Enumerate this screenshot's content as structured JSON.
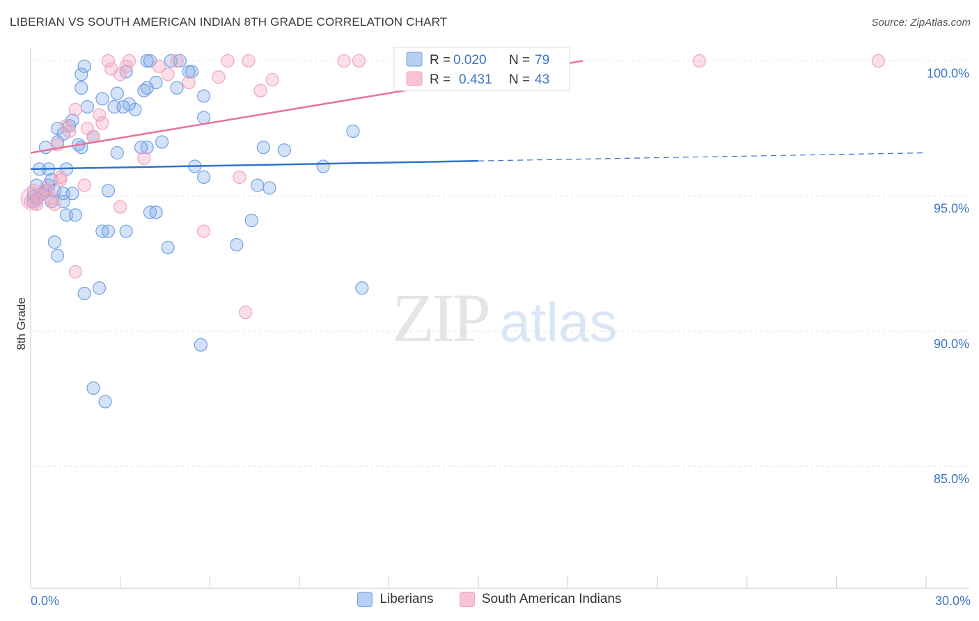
{
  "header": {
    "title": "LIBERIAN VS SOUTH AMERICAN INDIAN 8TH GRADE CORRELATION CHART",
    "source": "Source: ZipAtlas.com"
  },
  "watermark": {
    "zip": "ZIP",
    "atlas": "atlas"
  },
  "legend": {
    "r_label": "R =",
    "n_label": "N =",
    "liberian": {
      "r": "0.020",
      "n": "79"
    },
    "sai": {
      "r": "0.431",
      "n": "43"
    }
  },
  "chart_data": {
    "type": "scatter",
    "title": "LIBERIAN VS SOUTH AMERICAN INDIAN 8TH GRADE CORRELATION CHART",
    "xlabel": "",
    "ylabel": "8th Grade",
    "xlim": [
      0,
      30
    ],
    "ylim": [
      80.5,
      100.5
    ],
    "x_tick_labels": [
      "0.0%",
      "30.0%"
    ],
    "y_ticks": [
      85,
      90,
      95,
      100
    ],
    "y_tick_labels": [
      "85.0%",
      "90.0%",
      "95.0%",
      "100.0%"
    ],
    "colors": {
      "liberian": "#6fa0e4",
      "liberian_line": "#2e73c9",
      "sai": "#f0a3bd",
      "sai_line": "#e8709a",
      "tick": "#3b74c4"
    },
    "series": [
      {
        "name": "Liberians",
        "r": 0.02,
        "n": 79,
        "trend": {
          "x": [
            0,
            15
          ],
          "y": [
            96.0,
            96.3
          ],
          "dashed_x": [
            15,
            30
          ],
          "dashed_y": [
            96.3,
            96.6
          ]
        },
        "points": [
          [
            0.2,
            95.4
          ],
          [
            0.3,
            96.0
          ],
          [
            0.5,
            96.8
          ],
          [
            0.5,
            95.2
          ],
          [
            0.6,
            95.4
          ],
          [
            0.6,
            96.0
          ],
          [
            0.4,
            95.1
          ],
          [
            0.2,
            94.9
          ],
          [
            0.9,
            97.0
          ],
          [
            0.9,
            97.5
          ],
          [
            0.7,
            95.6
          ],
          [
            0.8,
            95.2
          ],
          [
            0.7,
            94.8
          ],
          [
            0.8,
            93.3
          ],
          [
            0.9,
            92.8
          ],
          [
            1.1,
            97.3
          ],
          [
            1.2,
            96.0
          ],
          [
            1.1,
            95.1
          ],
          [
            1.1,
            94.8
          ],
          [
            1.2,
            94.3
          ],
          [
            1.3,
            97.6
          ],
          [
            1.4,
            97.8
          ],
          [
            1.4,
            95.1
          ],
          [
            1.5,
            94.3
          ],
          [
            1.7,
            99.5
          ],
          [
            1.7,
            99.0
          ],
          [
            1.8,
            99.8
          ],
          [
            1.7,
            96.8
          ],
          [
            1.6,
            96.9
          ],
          [
            1.9,
            98.3
          ],
          [
            2.1,
            97.2
          ],
          [
            2.4,
            98.6
          ],
          [
            2.6,
            93.7
          ],
          [
            2.4,
            93.7
          ],
          [
            2.6,
            95.2
          ],
          [
            2.8,
            98.3
          ],
          [
            2.9,
            98.8
          ],
          [
            2.9,
            96.6
          ],
          [
            3.2,
            99.6
          ],
          [
            3.1,
            98.3
          ],
          [
            3.2,
            93.7
          ],
          [
            3.3,
            98.4
          ],
          [
            3.5,
            98.2
          ],
          [
            3.8,
            98.9
          ],
          [
            3.7,
            96.8
          ],
          [
            3.9,
            99.0
          ],
          [
            3.9,
            96.8
          ],
          [
            4.0,
            94.4
          ],
          [
            4.2,
            94.4
          ],
          [
            4.2,
            99.2
          ],
          [
            4.4,
            97.0
          ],
          [
            4.6,
            93.1
          ],
          [
            4.7,
            100.0
          ],
          [
            4.9,
            99.0
          ],
          [
            5.3,
            99.6
          ],
          [
            5.4,
            99.6
          ],
          [
            5.5,
            96.1
          ],
          [
            5.7,
            89.5
          ],
          [
            5.8,
            95.7
          ],
          [
            5.8,
            98.7
          ],
          [
            5.8,
            97.9
          ],
          [
            6.9,
            93.2
          ],
          [
            7.4,
            94.1
          ],
          [
            7.6,
            95.4
          ],
          [
            7.8,
            96.8
          ],
          [
            8.0,
            95.3
          ],
          [
            8.5,
            96.7
          ],
          [
            9.8,
            96.1
          ],
          [
            10.8,
            97.4
          ],
          [
            11.1,
            91.6
          ],
          [
            1.8,
            91.4
          ],
          [
            2.3,
            91.6
          ],
          [
            2.1,
            87.9
          ],
          [
            2.5,
            87.4
          ],
          [
            3.9,
            100.0
          ],
          [
            4.0,
            100.0
          ],
          [
            5.0,
            100.0
          ],
          [
            0.1,
            95.0
          ],
          [
            0.1,
            94.8
          ]
        ]
      },
      {
        "name": "South American Indians",
        "r": 0.431,
        "n": 43,
        "trend": {
          "x": [
            0,
            18.5
          ],
          "y": [
            96.6,
            100.0
          ]
        },
        "points": [
          [
            0.1,
            95.2
          ],
          [
            0.2,
            94.7
          ],
          [
            0.3,
            95.0
          ],
          [
            0.5,
            95.3
          ],
          [
            0.6,
            95.2
          ],
          [
            0.7,
            94.9
          ],
          [
            0.8,
            94.7
          ],
          [
            0.9,
            96.9
          ],
          [
            1.0,
            95.6
          ],
          [
            1.0,
            95.7
          ],
          [
            1.2,
            97.6
          ],
          [
            1.3,
            97.4
          ],
          [
            1.5,
            98.2
          ],
          [
            1.5,
            92.2
          ],
          [
            1.8,
            95.4
          ],
          [
            1.9,
            97.5
          ],
          [
            2.1,
            97.2
          ],
          [
            2.3,
            98.0
          ],
          [
            2.4,
            97.7
          ],
          [
            2.6,
            100.0
          ],
          [
            2.7,
            99.7
          ],
          [
            3.0,
            99.5
          ],
          [
            3.0,
            94.6
          ],
          [
            3.2,
            99.8
          ],
          [
            3.3,
            100.0
          ],
          [
            3.8,
            96.4
          ],
          [
            4.3,
            99.8
          ],
          [
            4.6,
            99.5
          ],
          [
            4.9,
            100.0
          ],
          [
            5.3,
            99.2
          ],
          [
            5.8,
            93.7
          ],
          [
            6.3,
            99.4
          ],
          [
            6.6,
            100.0
          ],
          [
            7.0,
            95.7
          ],
          [
            7.2,
            90.7
          ],
          [
            7.3,
            100.0
          ],
          [
            7.7,
            98.9
          ],
          [
            8.1,
            99.3
          ],
          [
            10.5,
            100.0
          ],
          [
            11.0,
            100.0
          ],
          [
            22.4,
            100.0
          ],
          [
            28.4,
            100.0
          ],
          [
            0.0,
            94.8
          ]
        ]
      }
    ]
  },
  "bottom_legend": {
    "liberian": "Liberians",
    "sai": "South American Indians"
  }
}
